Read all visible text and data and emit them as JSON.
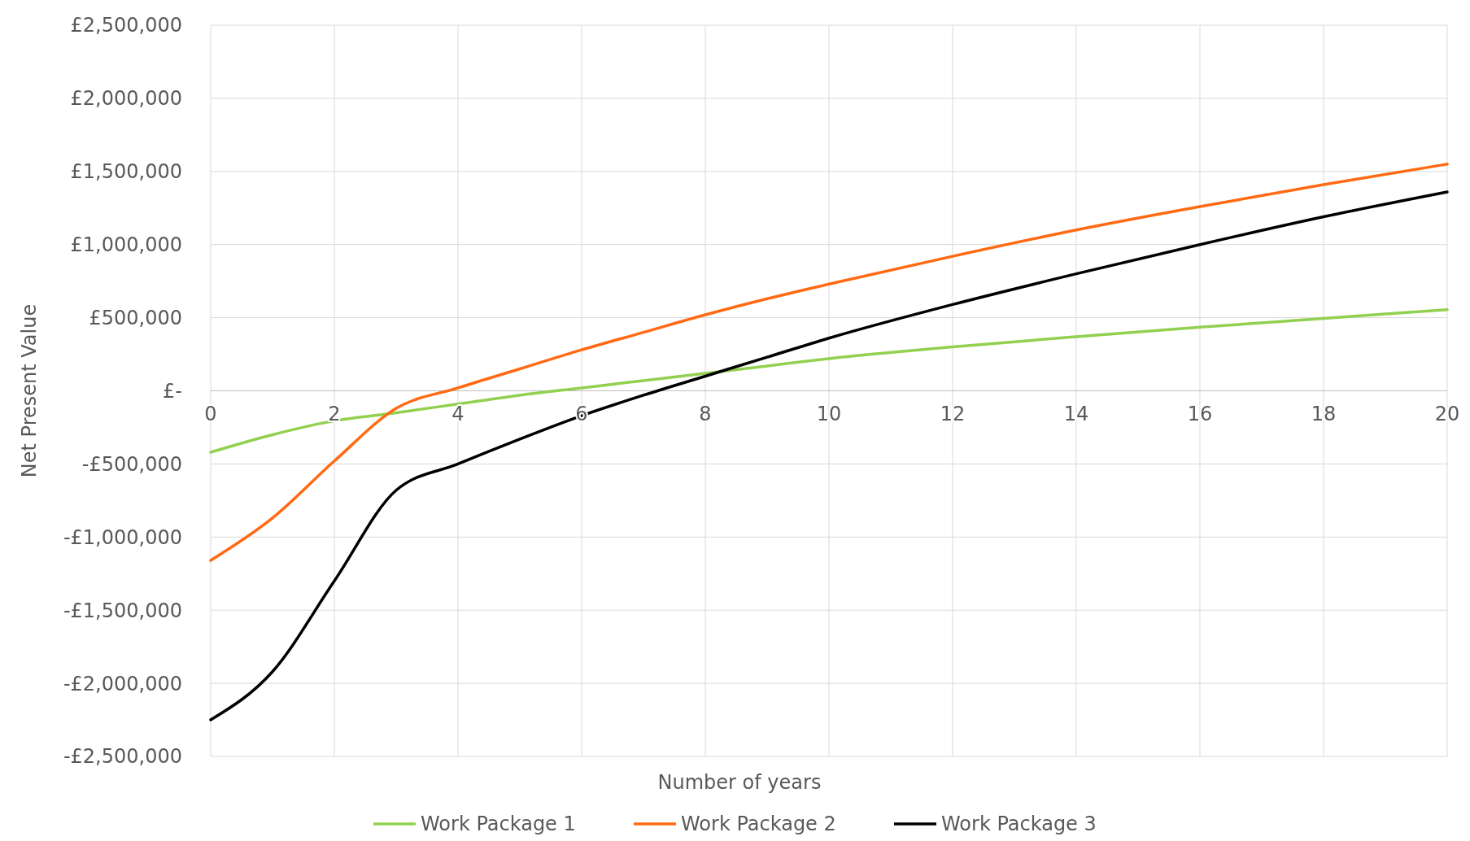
{
  "chart_data": {
    "type": "line",
    "xlabel": "Number of years",
    "ylabel": "Net Present Value",
    "x": [
      0,
      1,
      2,
      3,
      4,
      5,
      6,
      7,
      8,
      9,
      10,
      12,
      14,
      16,
      18,
      20
    ],
    "series": [
      {
        "name": "Work Package 1",
        "color": "#92d050",
        "values": [
          -420000,
          -300000,
          -205000,
          -150000,
          -90000,
          -30000,
          20000,
          70000,
          120000,
          170000,
          220000,
          300000,
          370000,
          435000,
          495000,
          555000
        ]
      },
      {
        "name": "Work Package 2",
        "color": "#ff6a13",
        "values": [
          -1160000,
          -870000,
          -480000,
          -120000,
          20000,
          150000,
          280000,
          400000,
          520000,
          630000,
          730000,
          920000,
          1100000,
          1260000,
          1410000,
          1550000
        ]
      },
      {
        "name": "Work Package 3",
        "color": "#000000",
        "values": [
          -2250000,
          -1920000,
          -1300000,
          -680000,
          -500000,
          -330000,
          -170000,
          -30000,
          100000,
          230000,
          360000,
          590000,
          800000,
          1000000,
          1190000,
          1360000
        ]
      }
    ],
    "xlim": [
      0,
      20
    ],
    "xticks": [
      0,
      2,
      4,
      6,
      8,
      10,
      12,
      14,
      16,
      18,
      20
    ],
    "ylim": [
      -2500000,
      2500000
    ],
    "yticks": [
      {
        "value": -2500000,
        "label": "-£2,500,000"
      },
      {
        "value": -2000000,
        "label": "-£2,000,000"
      },
      {
        "value": -1500000,
        "label": "-£1,500,000"
      },
      {
        "value": -1000000,
        "label": "-£1,000,000"
      },
      {
        "value": -500000,
        "label": "-£500,000"
      },
      {
        "value": 0,
        "label": "£-"
      },
      {
        "value": 500000,
        "label": "£500,000"
      },
      {
        "value": 1000000,
        "label": "£1,000,000"
      },
      {
        "value": 1500000,
        "label": "£1,500,000"
      },
      {
        "value": 2000000,
        "label": "£2,000,000"
      },
      {
        "value": 2500000,
        "label": "£2,500,000"
      }
    ],
    "grid": true,
    "legend": "bottom",
    "marker": "none",
    "line_style": "solid"
  }
}
